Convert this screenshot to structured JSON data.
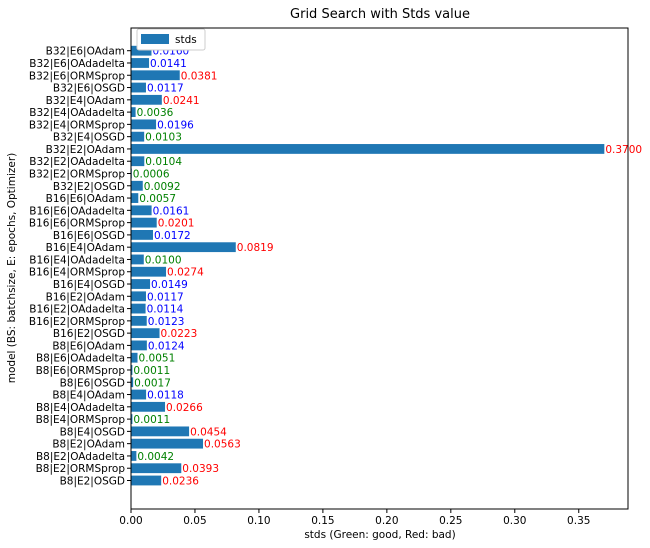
{
  "chart_data": {
    "type": "bar",
    "orientation": "horizontal",
    "title": "Grid Search with Stds value",
    "xlabel": "stds (Green: good, Red: bad)",
    "ylabel": "model (BS: batchsize, E: epochs, Optimizer)",
    "xlim": [
      0,
      0.3885
    ],
    "xticks": [
      "0.00",
      "0.05",
      "0.10",
      "0.15",
      "0.20",
      "0.25",
      "0.30",
      "0.35"
    ],
    "legend": {
      "position": "top-left",
      "entries": [
        "stds"
      ]
    },
    "bar_color": "#1f77b4",
    "label_colors": {
      "good": "#008000",
      "bad": "#ff0000",
      "neutral": "#0000ff"
    },
    "categories": [
      "B32|E6|OAdam",
      "B32|E6|OAdadelta",
      "B32|E6|ORMSprop",
      "B32|E6|OSGD",
      "B32|E4|OAdam",
      "B32|E4|OAdadelta",
      "B32|E4|ORMSprop",
      "B32|E4|OSGD",
      "B32|E2|OAdam",
      "B32|E2|OAdadelta",
      "B32|E2|ORMSprop",
      "B32|E2|OSGD",
      "B16|E6|OAdam",
      "B16|E6|OAdadelta",
      "B16|E6|ORMSprop",
      "B16|E6|OSGD",
      "B16|E4|OAdam",
      "B16|E4|OAdadelta",
      "B16|E4|ORMSprop",
      "B16|E4|OSGD",
      "B16|E2|OAdam",
      "B16|E2|OAdadelta",
      "B16|E2|ORMSprop",
      "B16|E2|OSGD",
      "B8|E6|OAdam",
      "B8|E6|OAdadelta",
      "B8|E6|ORMSprop",
      "B8|E6|OSGD",
      "B8|E4|OAdam",
      "B8|E4|OAdadelta",
      "B8|E4|ORMSprop",
      "B8|E4|OSGD",
      "B8|E2|OAdam",
      "B8|E2|OAdadelta",
      "B8|E2|ORMSprop",
      "B8|E2|OSGD"
    ],
    "values": [
      0.016,
      0.0141,
      0.0381,
      0.0117,
      0.0241,
      0.0036,
      0.0196,
      0.0103,
      0.37,
      0.0104,
      0.0006,
      0.0092,
      0.0057,
      0.0161,
      0.0201,
      0.0172,
      0.0819,
      0.01,
      0.0274,
      0.0149,
      0.0117,
      0.0114,
      0.0123,
      0.0223,
      0.0124,
      0.0051,
      0.0011,
      0.0017,
      0.0118,
      0.0266,
      0.0011,
      0.0454,
      0.0563,
      0.0042,
      0.0393,
      0.0236
    ],
    "value_labels": [
      "0.0160",
      "0.0141",
      "0.0381",
      "0.0117",
      "0.0241",
      "0.0036",
      "0.0196",
      "0.0103",
      "0.3700",
      "0.0104",
      "0.0006",
      "0.0092",
      "0.0057",
      "0.0161",
      "0.0201",
      "0.0172",
      "0.0819",
      "0.0100",
      "0.0274",
      "0.0149",
      "0.0117",
      "0.0114",
      "0.0123",
      "0.0223",
      "0.0124",
      "0.0051",
      "0.0011",
      "0.0017",
      "0.0118",
      "0.0266",
      "0.0011",
      "0.0454",
      "0.0563",
      "0.0042",
      "0.0393",
      "0.0236"
    ],
    "label_status": [
      "neutral",
      "neutral",
      "bad",
      "neutral",
      "bad",
      "good",
      "neutral",
      "good",
      "bad",
      "good",
      "good",
      "good",
      "good",
      "neutral",
      "bad",
      "neutral",
      "bad",
      "good",
      "bad",
      "neutral",
      "neutral",
      "neutral",
      "neutral",
      "bad",
      "neutral",
      "good",
      "good",
      "good",
      "neutral",
      "bad",
      "good",
      "bad",
      "bad",
      "good",
      "bad",
      "bad"
    ]
  }
}
